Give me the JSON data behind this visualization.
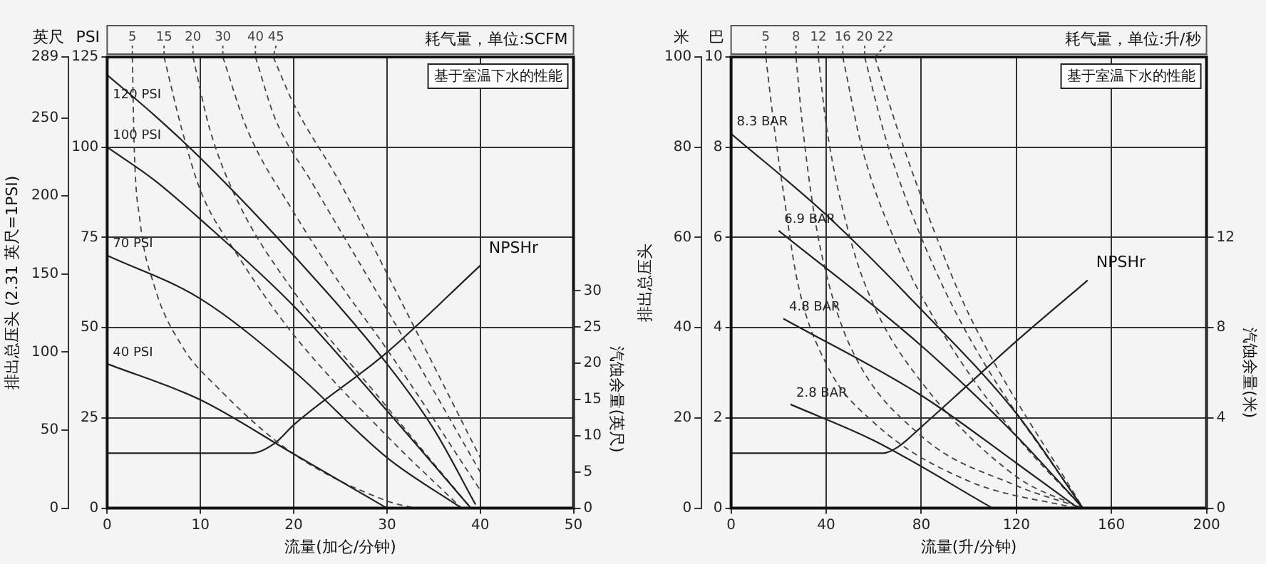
{
  "chart_data": [
    {
      "type": "line",
      "xlabel": "流量(加仑/分钟)",
      "ylabel": "PSI",
      "y2label": "英尺",
      "y3label": "汽蚀余量(英尺)",
      "annotations": [
        "耗气量，单位:SCFM",
        "基于室温下水的性能",
        "排出总压头 (2.31 英尺=1PSI)"
      ],
      "xlim": [
        0,
        50
      ],
      "xticks": [
        0,
        10,
        20,
        30,
        40,
        50
      ],
      "ylim": [
        0,
        125
      ],
      "yticks": [
        0,
        25,
        50,
        75,
        100,
        125
      ],
      "y2lim": [
        0,
        289
      ],
      "y2ticks": [
        0,
        50,
        100,
        150,
        200,
        250,
        289
      ],
      "y3lim": [
        0,
        62.3
      ],
      "y3ticks": [
        0,
        5,
        10,
        15,
        20,
        25,
        30
      ],
      "grid": true,
      "legend": false,
      "marker": "none",
      "series": [
        {
          "name": "120 PSI",
          "color": "#222222",
          "line_style": "solid",
          "x": [
            0,
            5,
            10,
            20,
            30,
            35,
            39.5
          ],
          "values": [
            120,
            109,
            97,
            70,
            40,
            22,
            1
          ]
        },
        {
          "name": "100 PSI",
          "color": "#222222",
          "line_style": "solid",
          "x": [
            0,
            5,
            10,
            20,
            30,
            39
          ],
          "values": [
            100,
            91,
            80,
            56,
            27,
            0
          ]
        },
        {
          "name": "70 PSI",
          "color": "#222222",
          "line_style": "solid",
          "x": [
            0,
            10,
            20,
            30,
            38
          ],
          "values": [
            70,
            58,
            38,
            14,
            0
          ]
        },
        {
          "name": "40 PSI",
          "color": "#222222",
          "line_style": "solid",
          "x": [
            0,
            10,
            20,
            30
          ],
          "values": [
            40,
            30,
            15,
            0
          ]
        },
        {
          "name": "5",
          "color": "#444444",
          "line_style": "dashed",
          "x": [
            2.7,
            2.9,
            3.5,
            5,
            8,
            12,
            20,
            30,
            33
          ],
          "values": [
            125,
            100,
            80,
            62,
            45,
            33,
            15,
            2,
            0
          ]
        },
        {
          "name": "15",
          "color": "#444444",
          "line_style": "dashed",
          "x": [
            6.1,
            8,
            10,
            14,
            20,
            30,
            38
          ],
          "values": [
            125,
            105,
            88,
            70,
            48,
            20,
            0
          ]
        },
        {
          "name": "20",
          "color": "#444444",
          "line_style": "dashed",
          "x": [
            9.2,
            11,
            14,
            20,
            30,
            39
          ],
          "values": [
            125,
            105,
            85,
            60,
            28,
            0
          ]
        },
        {
          "name": "30",
          "color": "#444444",
          "line_style": "dashed",
          "x": [
            12.4,
            15,
            20,
            25,
            30,
            40
          ],
          "values": [
            125,
            105,
            82,
            62,
            44,
            5
          ]
        },
        {
          "name": "40",
          "color": "#444444",
          "line_style": "dashed",
          "x": [
            15.9,
            18,
            22,
            30,
            40
          ],
          "values": [
            125,
            108,
            90,
            55,
            10
          ]
        },
        {
          "name": "45",
          "color": "#444444",
          "line_style": "dashed",
          "x": [
            17.8,
            20,
            25,
            30,
            40
          ],
          "values": [
            125,
            112,
            90,
            65,
            14
          ]
        },
        {
          "name": "NPSHr",
          "color": "#222222",
          "line_style": "solid",
          "axis": "y3",
          "x": [
            0,
            15.5,
            18,
            20,
            30,
            40
          ],
          "values": [
            7.6,
            7.6,
            9,
            11.5,
            21.5,
            33.5
          ]
        }
      ]
    },
    {
      "type": "line",
      "xlabel": "流量(升/分钟)",
      "ylabel": "巴",
      "y2label": "米",
      "y3label": "汽蚀余量(米)",
      "annotations": [
        "耗气量，单位:升/秒",
        "基于室温下水的性能",
        "排出总压头"
      ],
      "xlim": [
        0,
        200
      ],
      "xticks": [
        0,
        40,
        80,
        120,
        160,
        200
      ],
      "ylim": [
        0,
        10
      ],
      "yticks": [
        0,
        2,
        4,
        6,
        8,
        10
      ],
      "y2lim": [
        0,
        100
      ],
      "y2ticks": [
        0,
        20,
        40,
        60,
        80,
        100
      ],
      "y3lim": [
        0,
        20
      ],
      "y3ticks": [
        0,
        4,
        8,
        12
      ],
      "grid": true,
      "legend": false,
      "marker": "none",
      "series": [
        {
          "name": "8.3 BAR",
          "color": "#222222",
          "line_style": "solid",
          "x": [
            0,
            40,
            80,
            120,
            148
          ],
          "values": [
            8.3,
            6.5,
            4.4,
            2.1,
            0
          ]
        },
        {
          "name": "6.9 BAR",
          "color": "#222222",
          "line_style": "solid",
          "x": [
            20,
            80,
            120,
            148
          ],
          "values": [
            6.15,
            3.6,
            1.6,
            0
          ]
        },
        {
          "name": "4.8 BAR",
          "color": "#222222",
          "line_style": "solid",
          "x": [
            22,
            80,
            120,
            146
          ],
          "values": [
            4.2,
            2.5,
            1.0,
            0
          ]
        },
        {
          "name": "2.8 BAR",
          "color": "#222222",
          "line_style": "solid",
          "x": [
            25,
            60,
            110
          ],
          "values": [
            2.3,
            1.5,
            0
          ]
        },
        {
          "name": "5",
          "color": "#444444",
          "line_style": "dashed",
          "x": [
            14.6,
            18,
            22,
            28,
            40,
            60,
            100,
            145
          ],
          "values": [
            10,
            8.5,
            7,
            5,
            3.2,
            1.9,
            0.6,
            0
          ]
        },
        {
          "name": "8",
          "color": "#444444",
          "line_style": "dashed",
          "x": [
            27.3,
            30,
            35,
            40,
            50,
            80,
            120,
            148
          ],
          "values": [
            10,
            8.5,
            6.5,
            5.2,
            3.6,
            1.6,
            0.5,
            0
          ]
        },
        {
          "name": "12",
          "color": "#444444",
          "line_style": "dashed",
          "x": [
            36.7,
            40,
            50,
            60,
            80,
            120,
            148
          ],
          "values": [
            10,
            8.5,
            6,
            4.5,
            2.8,
            0.7,
            0
          ]
        },
        {
          "name": "16",
          "color": "#444444",
          "line_style": "dashed",
          "x": [
            47,
            55,
            70,
            90,
            120,
            148
          ],
          "values": [
            10,
            8,
            5.8,
            3.8,
            1.6,
            0
          ]
        },
        {
          "name": "20",
          "color": "#444444",
          "line_style": "dashed",
          "x": [
            56.2,
            65,
            80,
            100,
            148
          ],
          "values": [
            10,
            8.2,
            6,
            3.8,
            0
          ]
        },
        {
          "name": "22",
          "color": "#444444",
          "line_style": "dashed",
          "x": [
            60.5,
            70,
            85,
            100,
            148
          ],
          "values": [
            10,
            8.4,
            6.2,
            4.3,
            0
          ]
        },
        {
          "name": "NPSHr",
          "color": "#222222",
          "line_style": "solid",
          "axis": "y3",
          "x": [
            0,
            64,
            70,
            80,
            100,
            120,
            150
          ],
          "values": [
            2.44,
            2.44,
            2.7,
            3.6,
            5.5,
            7.4,
            10.1
          ]
        }
      ]
    }
  ]
}
